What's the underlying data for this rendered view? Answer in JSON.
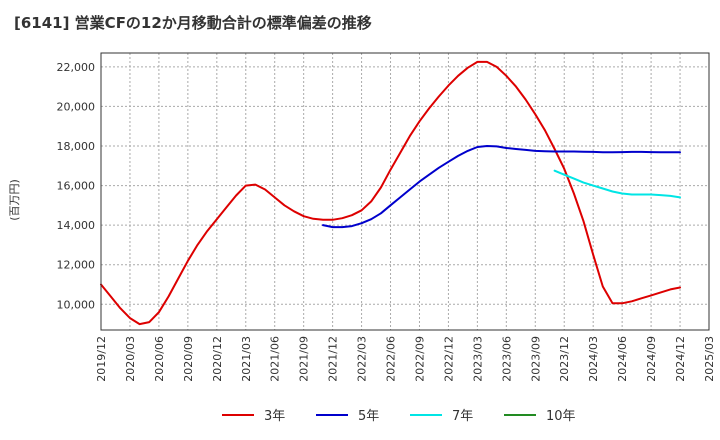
{
  "title": "[6141]  営業CFの12か月移動合計の標準偏差の推移",
  "chart_data": {
    "type": "line",
    "title": "[6141]  営業CFの12か月移動合計の標準偏差の推移",
    "xlabel": "",
    "ylabel": "(百万円)",
    "ylim": [
      8700,
      22700
    ],
    "grid": true,
    "legend_placement": "bottom",
    "y_ticks": [
      "10,000",
      "12,000",
      "14,000",
      "16,000",
      "18,000",
      "20,000",
      "22,000"
    ],
    "x_ticks": [
      "2019/12",
      "2020/03",
      "2020/06",
      "2020/09",
      "2020/12",
      "2021/03",
      "2021/06",
      "2021/09",
      "2021/12",
      "2022/03",
      "2022/06",
      "2022/09",
      "2022/12",
      "2023/03",
      "2023/06",
      "2023/09",
      "2023/12",
      "2024/03",
      "2024/06",
      "2024/09",
      "2024/12",
      "2025/03"
    ],
    "series": [
      {
        "name": "3年",
        "color": "#dd0000",
        "x": [
          "2019/12",
          "2020/01",
          "2020/02",
          "2020/03",
          "2020/04",
          "2020/05",
          "2020/06",
          "2020/07",
          "2020/08",
          "2020/09",
          "2020/10",
          "2020/11",
          "2020/12",
          "2021/01",
          "2021/02",
          "2021/03",
          "2021/04",
          "2021/05",
          "2021/06",
          "2021/07",
          "2021/08",
          "2021/09",
          "2021/10",
          "2021/11",
          "2021/12",
          "2022/01",
          "2022/02",
          "2022/03",
          "2022/04",
          "2022/05",
          "2022/06",
          "2022/07",
          "2022/08",
          "2022/09",
          "2022/10",
          "2022/11",
          "2022/12",
          "2023/01",
          "2023/02",
          "2023/03",
          "2023/04",
          "2023/05",
          "2023/06",
          "2023/07",
          "2023/08",
          "2023/09",
          "2023/10",
          "2023/11",
          "2023/12",
          "2024/01",
          "2024/02",
          "2024/03",
          "2024/04",
          "2024/05",
          "2024/06",
          "2024/07",
          "2024/08",
          "2024/09",
          "2024/10",
          "2024/11",
          "2024/12"
        ],
        "y": [
          11000,
          10400,
          9800,
          9300,
          9000,
          9100,
          9600,
          10400,
          11300,
          12200,
          13000,
          13700,
          14300,
          14900,
          15500,
          16000,
          16050,
          15800,
          15400,
          15000,
          14700,
          14450,
          14320,
          14270,
          14270,
          14350,
          14500,
          14750,
          15200,
          15900,
          16800,
          17650,
          18500,
          19250,
          19900,
          20500,
          21050,
          21550,
          21950,
          22250,
          22250,
          22000,
          21550,
          21000,
          20350,
          19600,
          18800,
          17850,
          16850,
          15600,
          14200,
          12500,
          10900,
          10050,
          10050,
          10150,
          10300,
          10450,
          10600,
          10750,
          10850
        ]
      },
      {
        "name": "5年",
        "color": "#0000cc",
        "x": [
          "2021/11",
          "2021/12",
          "2022/01",
          "2022/02",
          "2022/03",
          "2022/04",
          "2022/05",
          "2022/06",
          "2022/07",
          "2022/08",
          "2022/09",
          "2022/10",
          "2022/11",
          "2022/12",
          "2023/01",
          "2023/02",
          "2023/03",
          "2023/04",
          "2023/05",
          "2023/06",
          "2023/07",
          "2023/08",
          "2023/09",
          "2023/10",
          "2023/11",
          "2023/12",
          "2024/01",
          "2024/02",
          "2024/03",
          "2024/04",
          "2024/05",
          "2024/06",
          "2024/07",
          "2024/08",
          "2024/09",
          "2024/10",
          "2024/11",
          "2024/12"
        ],
        "y": [
          14000,
          13900,
          13900,
          13950,
          14100,
          14300,
          14600,
          15000,
          15400,
          15800,
          16200,
          16550,
          16900,
          17200,
          17500,
          17750,
          17950,
          18000,
          17980,
          17900,
          17850,
          17800,
          17750,
          17730,
          17720,
          17720,
          17720,
          17710,
          17700,
          17680,
          17680,
          17690,
          17700,
          17700,
          17690,
          17680,
          17680,
          17680
        ]
      },
      {
        "name": "7年",
        "color": "#00e5e5",
        "x": [
          "2023/11",
          "2023/12",
          "2024/01",
          "2024/02",
          "2024/03",
          "2024/04",
          "2024/05",
          "2024/06",
          "2024/07",
          "2024/08",
          "2024/09",
          "2024/10",
          "2024/11",
          "2024/12"
        ],
        "y": [
          16750,
          16550,
          16350,
          16150,
          16000,
          15850,
          15700,
          15600,
          15550,
          15550,
          15550,
          15520,
          15480,
          15400
        ]
      },
      {
        "name": "10年",
        "color": "#228b22",
        "x": [],
        "y": []
      }
    ]
  }
}
